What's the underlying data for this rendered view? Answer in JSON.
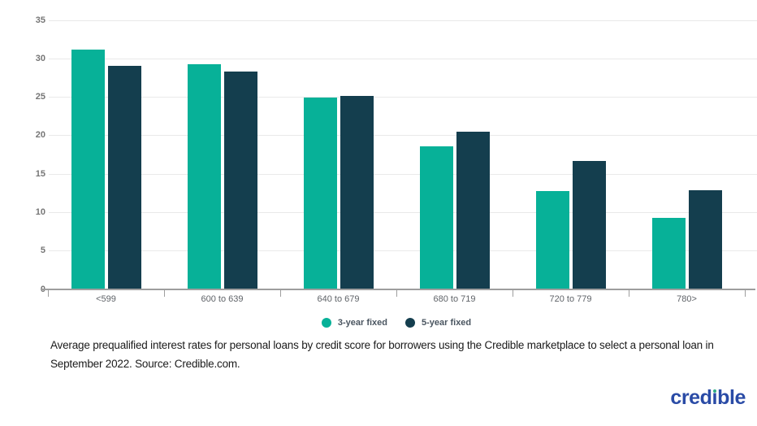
{
  "chart_data": {
    "type": "bar",
    "title": "",
    "xlabel": "",
    "ylabel": "",
    "categories": [
      "<599",
      "600 to 639",
      "640 to 679",
      "680 to 719",
      "720 to 779",
      "780>"
    ],
    "series": [
      {
        "name": "3-year fixed",
        "color": "#07b198",
        "values": [
          31.1,
          29.2,
          24.9,
          18.5,
          12.7,
          9.2
        ]
      },
      {
        "name": "5-year fixed",
        "color": "#143e4e",
        "values": [
          29.0,
          28.2,
          25.1,
          20.4,
          16.6,
          12.8
        ]
      }
    ],
    "ylim": [
      0,
      35
    ],
    "yticks": [
      0,
      5,
      10,
      15,
      20,
      25,
      30,
      35
    ],
    "grid": true,
    "legend_position": "bottom-center",
    "colors": {
      "gridline": "#e9e9e9",
      "axis": "#9e9e9e",
      "ytick_label": "#757575",
      "xcat_label": "#5f6368"
    }
  },
  "caption": {
    "text": "Average prequalified interest rates for personal loans by credit score for borrowers using the Credible marketplace to select a personal loan in September 2022. Source: Credible.com."
  },
  "logo": {
    "text": "credible",
    "part_before_i": "cred",
    "dotless_i": "ı",
    "part_after_i": "ble",
    "color": "#2a4ba6",
    "dot_color": "#2fae84"
  }
}
